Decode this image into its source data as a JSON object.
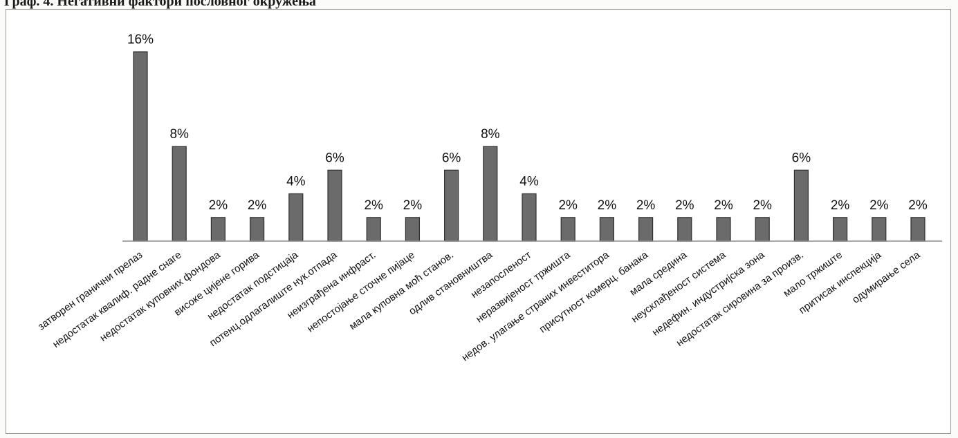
{
  "figure": {
    "caption": "Граф. 4. Негативни фактори пословног окружења"
  },
  "chart_data": {
    "type": "bar",
    "title": "",
    "xlabel": "",
    "ylabel": "",
    "ylim": [
      0,
      16
    ],
    "grid": false,
    "legend": "none",
    "colors": {
      "bar_fill": "#6b6b6b",
      "bar_edge": "#2f2f2f",
      "axis": "#8c8c8c"
    },
    "categories": [
      "затворен гранични прелаз",
      "недостатак квалиф. радне снаге",
      "недостатак куповних фондова",
      "високе цијене горива",
      "недостатак подстицаја",
      "потенц.одлагалиште нук.отпада",
      "неизграђена инфраст.",
      "непостојање сточне пијаце",
      "мала куповна моћ станов.",
      "одлив становништва",
      "незапосленост",
      "неразвијеност  тржишта",
      "недов. улагање страних инвеститора",
      "присутност комерц. банака",
      "мала средина",
      "неусклађеност система",
      "недефин. индустријска зона",
      "недостатак сировина за произв.",
      "мало тржиште",
      "притисак инспекција",
      "одумирање села"
    ],
    "values": [
      16,
      8,
      2,
      2,
      4,
      6,
      2,
      2,
      6,
      8,
      4,
      2,
      2,
      2,
      2,
      2,
      2,
      6,
      2,
      2,
      2
    ],
    "data_labels": [
      "16%",
      "8%",
      "2%",
      "2%",
      "4%",
      "6%",
      "2%",
      "2%",
      "6%",
      "8%",
      "4%",
      "2%",
      "2%",
      "2%",
      "2%",
      "2%",
      "2%",
      "6%",
      "2%",
      "2%",
      "2%"
    ]
  }
}
